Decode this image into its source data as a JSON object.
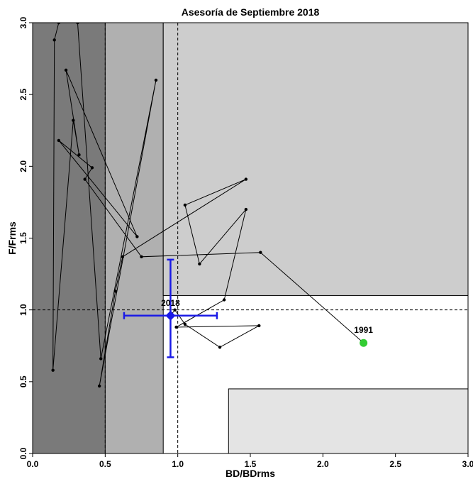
{
  "chart_data": {
    "type": "scatter",
    "title": "Asesoría de Septiembre 2018",
    "xlabel": "BD/BDrms",
    "ylabel": "F/Frms",
    "xlim": [
      0,
      3
    ],
    "ylim": [
      0,
      3
    ],
    "x_ticks": [
      "0.0",
      "0.5",
      "1.0",
      "1.5",
      "2.0",
      "2.5",
      "3.0"
    ],
    "y_ticks": [
      "0.0",
      "0.5",
      "1.0",
      "1.5",
      "2.0",
      "2.5",
      "3.0"
    ],
    "reference_lines": {
      "x": 1.0,
      "y": 1.0
    },
    "zones": [
      {
        "name": "dark",
        "x": [
          0,
          0.5
        ],
        "y": [
          0,
          3
        ],
        "color": "#7a7a7a"
      },
      {
        "name": "mid",
        "x": [
          0.5,
          0.9
        ],
        "y": [
          0,
          3
        ],
        "color": "#b0b0b0"
      },
      {
        "name": "light",
        "x": [
          0.9,
          3
        ],
        "y": [
          1.1,
          3
        ],
        "color": "#cdcdcd"
      },
      {
        "name": "lightest",
        "x": [
          1.35,
          3
        ],
        "y": [
          0,
          0.45
        ],
        "color": "#e4e4e4"
      }
    ],
    "trajectory": [
      {
        "x": 2.28,
        "y": 0.77
      },
      {
        "x": 1.57,
        "y": 1.4
      },
      {
        "x": 0.75,
        "y": 1.37
      },
      {
        "x": 0.36,
        "y": 1.91
      },
      {
        "x": 0.41,
        "y": 1.99
      },
      {
        "x": 0.18,
        "y": 2.18
      },
      {
        "x": 0.72,
        "y": 1.51
      },
      {
        "x": 0.23,
        "y": 2.67
      },
      {
        "x": 0.32,
        "y": 2.08
      },
      {
        "x": 0.28,
        "y": 2.32
      },
      {
        "x": 0.14,
        "y": 0.58
      },
      {
        "x": 0.15,
        "y": 2.88
      },
      {
        "x": 0.18,
        "y": 3.0
      },
      {
        "x": 0.31,
        "y": 3.0
      },
      {
        "x": 0.47,
        "y": 0.66
      },
      {
        "x": 0.85,
        "y": 2.6
      },
      {
        "x": 0.46,
        "y": 0.47
      },
      {
        "x": 0.57,
        "y": 1.13
      },
      {
        "x": 0.62,
        "y": 1.37
      },
      {
        "x": 1.47,
        "y": 1.91
      },
      {
        "x": 1.05,
        "y": 1.73
      },
      {
        "x": 1.15,
        "y": 1.32
      },
      {
        "x": 1.47,
        "y": 1.7
      },
      {
        "x": 1.32,
        "y": 1.07
      },
      {
        "x": 0.99,
        "y": 0.88
      },
      {
        "x": 1.56,
        "y": 0.89
      },
      {
        "x": 1.29,
        "y": 0.74
      },
      {
        "x": 1.05,
        "y": 0.9
      },
      {
        "x": 0.98,
        "y": 1.0
      },
      {
        "x": 0.95,
        "y": 0.96
      }
    ],
    "start_point": {
      "label": "1991",
      "x": 2.28,
      "y": 0.77,
      "color": "#33cc33"
    },
    "current_point": {
      "label": "2018",
      "x": 0.95,
      "y": 0.96,
      "color": "#1a1ae6",
      "x_err": [
        0.63,
        1.27
      ],
      "y_err": [
        0.67,
        1.35
      ]
    }
  }
}
